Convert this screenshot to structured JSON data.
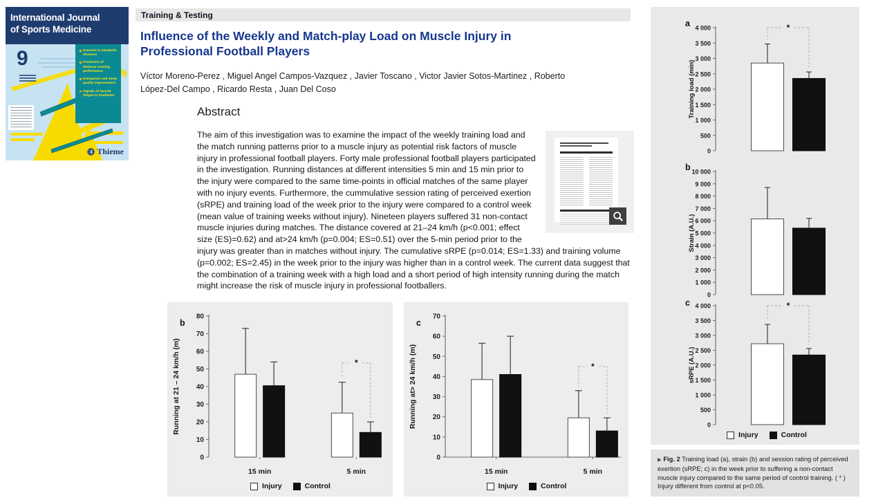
{
  "journal_cover": {
    "title_line1": "International Journal",
    "title_line2": "of Sports Medicine",
    "issue_number": "9",
    "highlights": [
      "Exercise in metabolic diseases",
      "Predictors of distance running performance",
      "Exergames and sleep quality improvement",
      "Signals of muscle fatigue in triathletes"
    ],
    "publisher": "Thieme"
  },
  "header": {
    "section": "Training & Testing"
  },
  "article": {
    "title": "Influence of the Weekly and Match-play Load on Muscle Injury in Professional Football Players",
    "authors": "Víctor Moreno-Perez , Miguel Angel Campos-Vazquez , Javier Toscano , Victor Javier Sotos-Martinez , Roberto López-Del Campo , Ricardo Resta , Juan Del Coso",
    "abstract_heading": "Abstract",
    "abstract_text": "The aim of this investigation was to examine the impact of the weekly training load and the match running patterns prior to a muscle injury as potential risk factors of muscle injury in professional football players. Forty male professional football players participated in the investigation. Running distances at different intensities 5 min and 15 min prior to the injury were compared to the same time-points in official matches of the same player with no injury events. Furthermore, the cummulative session rating of perceived exertion (sRPE) and training load of the week prior to the injury were compared to a control week (mean value of training weeks without injury). Nineteen players suffered 31 non-contact muscle injuries during matches. The distance covered at 21–24 km/h (p<0.001; effect size (ES)=0.62) and at>24 km/h (p=0.004; ES=0.51) over the 5-min period prior to the injury was greater than in matches without injury. The cumulative sRPE (p=0.014; ES=1.33) and training volume (p=0.002; ES=2.45) in the week prior to the injury was higher than in a control week. The current data suggest that the combination of a training week with a high load and a short period of high intensity running during the match might increase the risk of muscle injury in professional footballers."
  },
  "legend": {
    "injury": "Injury",
    "control": "Control"
  },
  "figure_caption": {
    "marker": "▶",
    "label": "Fig. 2",
    "text": "Training load (a), strain (b) and session rating of perceived exertion (sRPE; c) in the week prior to suffering a non-contact muscle injury compared to the same period of control training. ( * ) Injury different from control at p<0.05."
  },
  "colors": {
    "title_blue": "#17378d",
    "cover_navy": "#1f3c6f",
    "cover_light_blue": "#c7e3f2",
    "cover_teal": "#0b8a93",
    "cover_yellow": "#f7db00",
    "panel_gray": "#e9e9e9",
    "figure_panel_gray": "#ededed",
    "bar_injury": "#ffffff",
    "bar_control": "#111111"
  },
  "chart_data": [
    {
      "id": "running_21_24",
      "type": "bar",
      "panel_label": "b",
      "ylabel": "Running at 21 – 24 km/h (m)",
      "ylim": [
        0,
        80
      ],
      "ystep": 10,
      "xaxis_line": false,
      "categories": [
        "15 min",
        "5 min"
      ],
      "series": [
        {
          "name": "Injury",
          "fill": "#ffffff",
          "values": [
            47,
            25
          ],
          "error_top": [
            73,
            42.5
          ]
        },
        {
          "name": "Control",
          "fill": "#111111",
          "values": [
            40.5,
            14
          ],
          "error_top": [
            54,
            20
          ]
        }
      ],
      "sig": {
        "category": "5 min",
        "y": 53.5,
        "label": "*"
      }
    },
    {
      "id": "running_gt_24",
      "type": "bar",
      "panel_label": "c",
      "ylabel": "Running at> 24 km/h (m)",
      "ylim": [
        0,
        70
      ],
      "ystep": 10,
      "xaxis_line": true,
      "categories": [
        "15 min",
        "5 min"
      ],
      "series": [
        {
          "name": "Injury",
          "fill": "#ffffff",
          "values": [
            38.5,
            19.5
          ],
          "error_top": [
            56.5,
            33
          ]
        },
        {
          "name": "Control",
          "fill": "#111111",
          "values": [
            41,
            13
          ],
          "error_top": [
            60,
            19.5
          ]
        }
      ],
      "sig": {
        "category": "5 min",
        "y": 45,
        "label": "*"
      }
    },
    {
      "id": "training_load",
      "type": "bar",
      "panel_label": "a",
      "ylabel": "Training load (min)",
      "ylim": [
        0,
        4000
      ],
      "ystep": 500,
      "xaxis_line": false,
      "categories": [
        ""
      ],
      "series": [
        {
          "name": "Injury",
          "fill": "#ffffff",
          "values": [
            2850
          ],
          "error_top": [
            3470
          ]
        },
        {
          "name": "Control",
          "fill": "#111111",
          "values": [
            2350
          ],
          "error_top": [
            2560
          ]
        }
      ],
      "sig": {
        "category": "",
        "y": 4000,
        "label": "*"
      }
    },
    {
      "id": "strain",
      "type": "bar",
      "panel_label": "b",
      "ylabel": "Strain (A.U.)",
      "ylim": [
        0,
        10000
      ],
      "ystep": 1000,
      "xaxis_line": false,
      "categories": [
        ""
      ],
      "series": [
        {
          "name": "Injury",
          "fill": "#ffffff",
          "values": [
            6150
          ],
          "error_top": [
            8700
          ]
        },
        {
          "name": "Control",
          "fill": "#111111",
          "values": [
            5400
          ],
          "error_top": [
            6200
          ]
        }
      ]
    },
    {
      "id": "srpe",
      "type": "bar",
      "panel_label": "c",
      "ylabel": "sRPE (A.U.)",
      "ylim": [
        0,
        4000
      ],
      "ystep": 500,
      "xaxis_line": false,
      "categories": [
        ""
      ],
      "series": [
        {
          "name": "Injury",
          "fill": "#ffffff",
          "values": [
            2720
          ],
          "error_top": [
            3370
          ]
        },
        {
          "name": "Control",
          "fill": "#111111",
          "values": [
            2340
          ],
          "error_top": [
            2560
          ]
        }
      ],
      "sig": {
        "category": "",
        "y": 4000,
        "label": "*"
      }
    }
  ]
}
